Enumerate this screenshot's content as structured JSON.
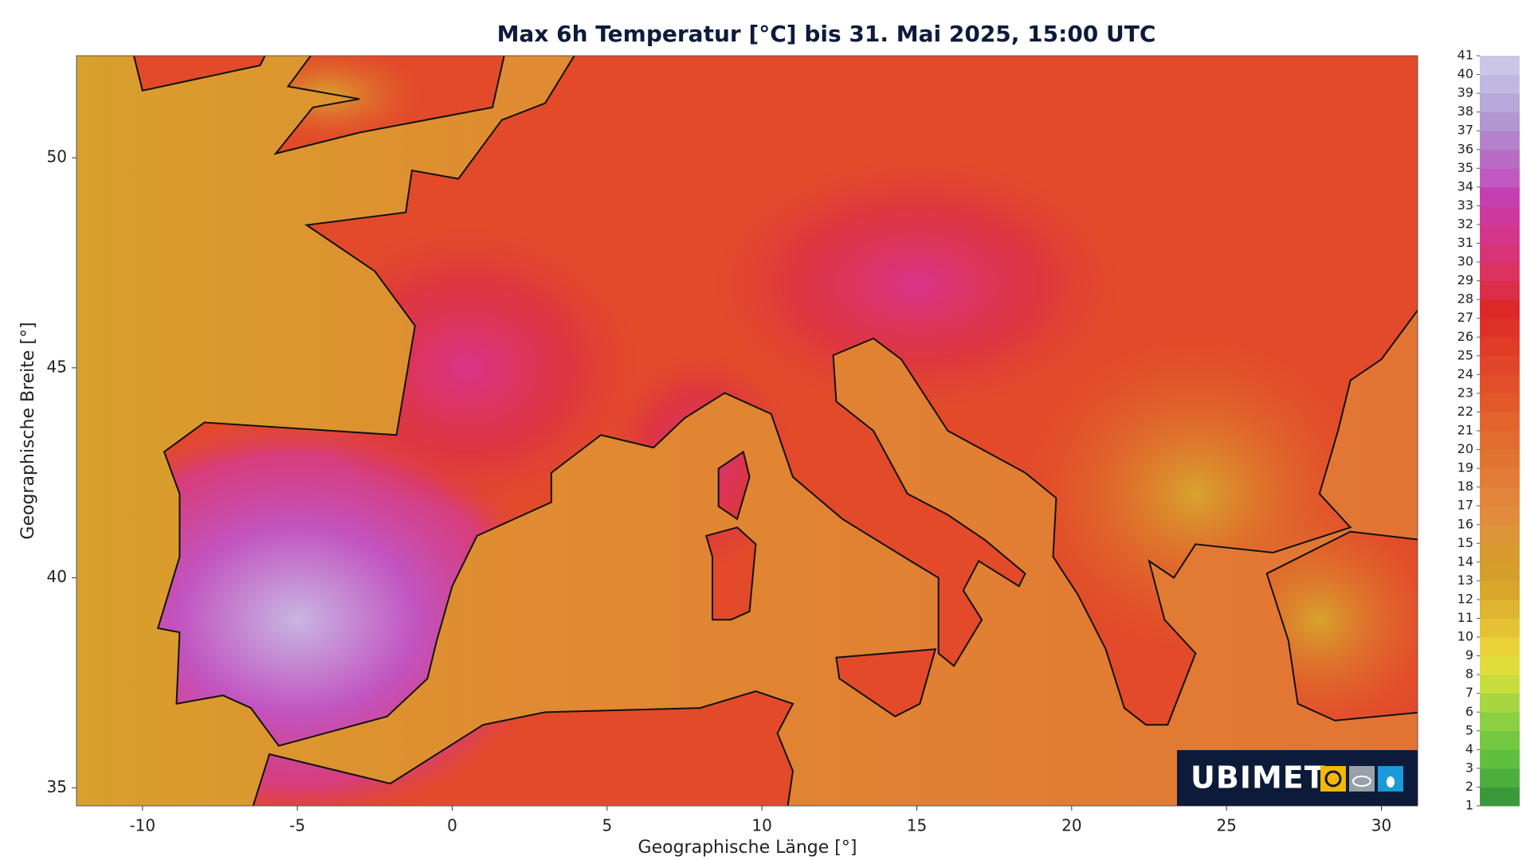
{
  "chart_data": {
    "type": "map",
    "title": "Max 6h Temperatur [°C] bis 31. Mai 2025, 15:00 UTC",
    "x_label": "Geographische Länge [°]",
    "y_label": "Geographische Breite [°]",
    "xlim": [
      -12.13,
      31.17
    ],
    "ylim": [
      34.57,
      52.43
    ],
    "xticks": [
      -10,
      -5,
      0,
      5,
      10,
      15,
      20,
      25,
      30
    ],
    "yticks": [
      35,
      40,
      45,
      50
    ],
    "colorbar": {
      "ticks": [
        1,
        2,
        3,
        4,
        5,
        6,
        7,
        8,
        9,
        10,
        11,
        12,
        13,
        14,
        15,
        16,
        17,
        18,
        19,
        20,
        21,
        22,
        23,
        24,
        25,
        26,
        27,
        28,
        29,
        30,
        31,
        32,
        33,
        34,
        35,
        36,
        37,
        38,
        39,
        40,
        41
      ],
      "colors": [
        "#3a9a3a",
        "#4cae3c",
        "#5ec03e",
        "#74c840",
        "#8ad040",
        "#a6d640",
        "#c8dc3c",
        "#e0dc3a",
        "#e8d238",
        "#e4c234",
        "#deb430",
        "#d8a82c",
        "#d49e2a",
        "#d89a2e",
        "#dc9438",
        "#e08c3c",
        "#e2843a",
        "#e27c36",
        "#e27432",
        "#e26c2e",
        "#e2642c",
        "#e25a2a",
        "#e2502a",
        "#e2462a",
        "#e03c28",
        "#de3228",
        "#dc2826",
        "#dc2e48",
        "#dc3460",
        "#d83478",
        "#d4368e",
        "#cc3aa0",
        "#c440b2",
        "#c058c0",
        "#b86cc6",
        "#b482cc",
        "#b296d2",
        "#b6a8d8",
        "#c0b8e0",
        "#cac6e6"
      ]
    },
    "logo": "UBIMET"
  }
}
